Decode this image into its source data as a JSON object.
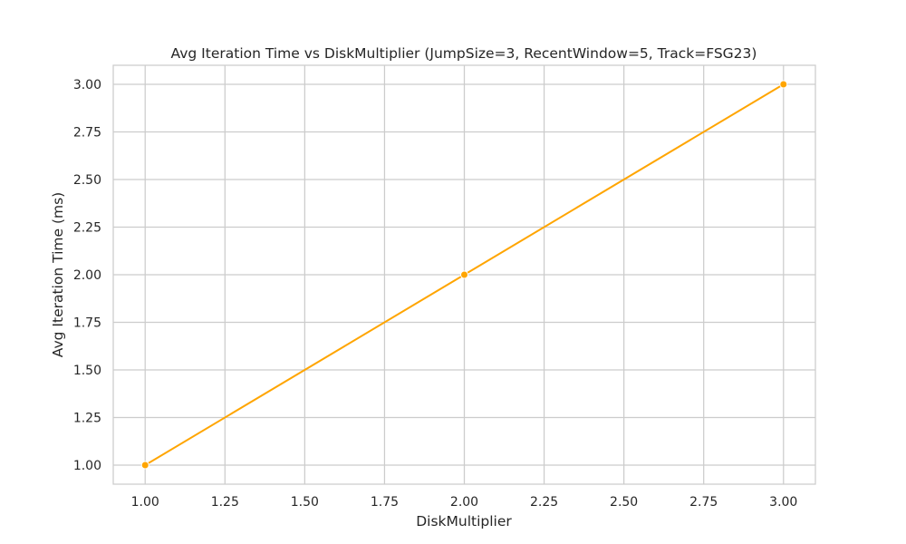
{
  "chart_data": {
    "type": "line",
    "title": "Avg Iteration Time vs DiskMultiplier (JumpSize=3, RecentWindow=5, Track=FSG23)",
    "xlabel": "DiskMultiplier",
    "ylabel": "Avg Iteration Time (ms)",
    "xlim": [
      0.9,
      3.1
    ],
    "ylim": [
      0.9,
      3.1
    ],
    "x_ticks": [
      "1.00",
      "1.25",
      "1.50",
      "1.75",
      "2.00",
      "2.25",
      "2.50",
      "2.75",
      "3.00"
    ],
    "y_ticks": [
      "1.00",
      "1.25",
      "1.50",
      "1.75",
      "2.00",
      "2.25",
      "2.50",
      "2.75",
      "3.00"
    ],
    "grid": true,
    "series": [
      {
        "color": "#ffa500",
        "marker": "circle",
        "points": [
          {
            "x": 1.0,
            "y": 1.0
          },
          {
            "x": 2.0,
            "y": 2.0
          },
          {
            "x": 3.0,
            "y": 3.0
          }
        ]
      }
    ]
  }
}
